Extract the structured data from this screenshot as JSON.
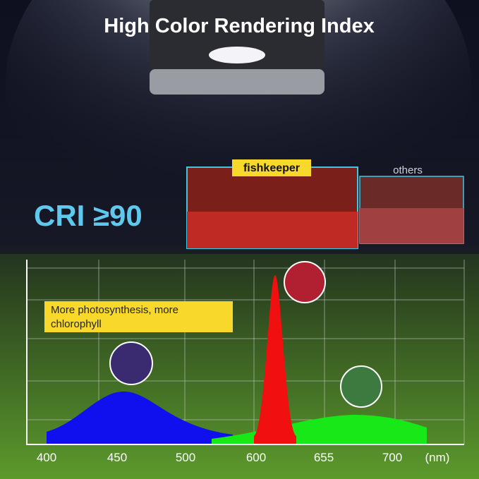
{
  "header": {
    "title": "High Color Rendering Index"
  },
  "cri": "CRI ≥90",
  "comparison": {
    "ours": "fishkeeper",
    "others": "others"
  },
  "spectrum": {
    "annotation": [
      "More photosynthesis, more",
      "chlorophyll"
    ],
    "x_labels": [
      "400",
      "450",
      "500",
      "600",
      "655",
      "700"
    ],
    "unit": "(nm)"
  }
}
